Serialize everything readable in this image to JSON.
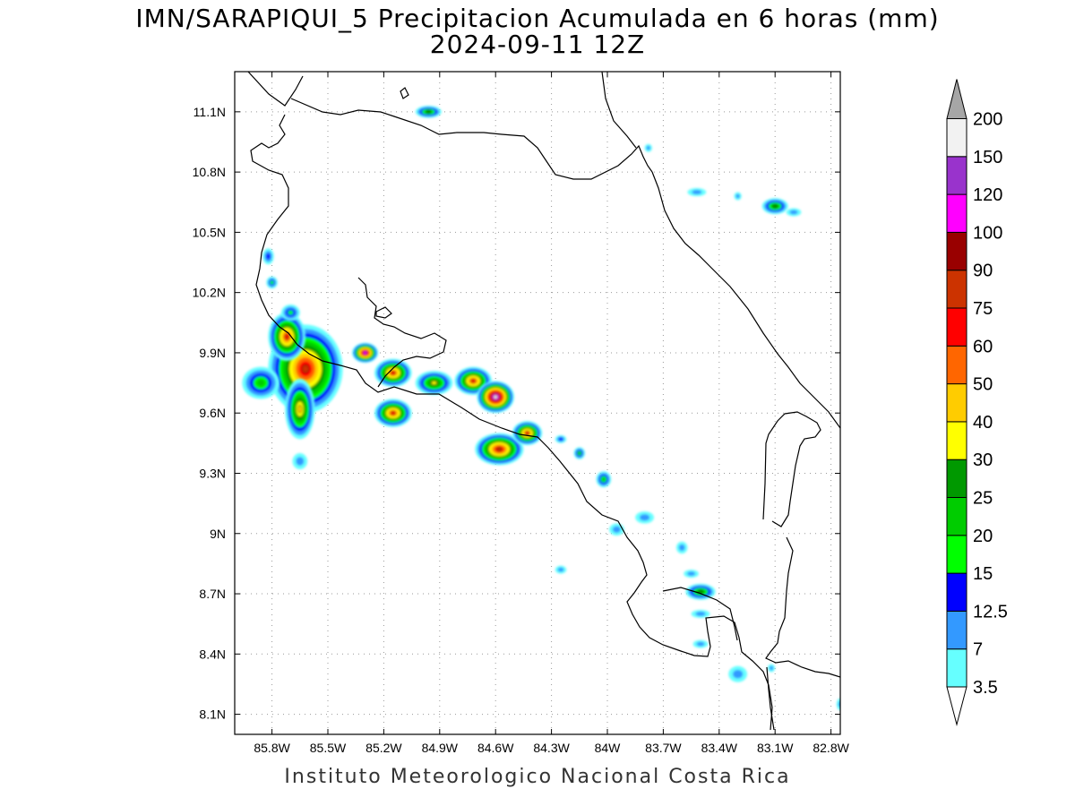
{
  "title": {
    "line1": "IMN/SARAPIQUI_5 Precipitacion Acumulada en 6 horas (mm)",
    "line2": "2024-09-11 12Z"
  },
  "footer": "Instituto Meteorologico Nacional Costa Rica",
  "map": {
    "lon_range": [
      -86.0,
      -82.75
    ],
    "lat_range": [
      8.0,
      11.3
    ],
    "lon_ticks": [
      {
        "value": -85.8,
        "label": "85.8W"
      },
      {
        "value": -85.5,
        "label": "85.5W"
      },
      {
        "value": -85.2,
        "label": "85.2W"
      },
      {
        "value": -84.9,
        "label": "84.9W"
      },
      {
        "value": -84.6,
        "label": "84.6W"
      },
      {
        "value": -84.3,
        "label": "84.3W"
      },
      {
        "value": -84.0,
        "label": "84W"
      },
      {
        "value": -83.7,
        "label": "83.7W"
      },
      {
        "value": -83.4,
        "label": "83.4W"
      },
      {
        "value": -83.1,
        "label": "83.1W"
      },
      {
        "value": -82.8,
        "label": "82.8W"
      }
    ],
    "lat_ticks": [
      {
        "value": 11.1,
        "label": "11.1N"
      },
      {
        "value": 10.8,
        "label": "10.8N"
      },
      {
        "value": 10.5,
        "label": "10.5N"
      },
      {
        "value": 10.2,
        "label": "10.2N"
      },
      {
        "value": 9.9,
        "label": "9.9N"
      },
      {
        "value": 9.6,
        "label": "9.6N"
      },
      {
        "value": 9.3,
        "label": "9.3N"
      },
      {
        "value": 9.0,
        "label": "9N"
      },
      {
        "value": 8.7,
        "label": "8.7N"
      },
      {
        "value": 8.4,
        "label": "8.4N"
      },
      {
        "value": 8.1,
        "label": "8.1N"
      }
    ],
    "grid": "dotted"
  },
  "colorbar": {
    "levels": [
      {
        "label": "3.5",
        "color": "#66ffff"
      },
      {
        "label": "7",
        "color": "#3399ff"
      },
      {
        "label": "12.5",
        "color": "#0000ff"
      },
      {
        "label": "15",
        "color": "#00ff00"
      },
      {
        "label": "20",
        "color": "#00cc00"
      },
      {
        "label": "25",
        "color": "#009900"
      },
      {
        "label": "30",
        "color": "#ffff00"
      },
      {
        "label": "40",
        "color": "#ffcc00"
      },
      {
        "label": "50",
        "color": "#ff6600"
      },
      {
        "label": "60",
        "color": "#ff0000"
      },
      {
        "label": "75",
        "color": "#cc3300"
      },
      {
        "label": "90",
        "color": "#990000"
      },
      {
        "label": "100",
        "color": "#ff00ff"
      },
      {
        "label": "120",
        "color": "#9933cc"
      },
      {
        "label": "150",
        "color": "#f2f2f2"
      },
      {
        "label": "200",
        "color": ""
      }
    ],
    "top_arrow_color": "#a6a6a6",
    "bottom_arrow_color": "#ffffff"
  },
  "rain_cells": [
    {
      "lon": -85.62,
      "lat": 9.82,
      "peak": 75,
      "rlon": 0.2,
      "rlat": 0.22
    },
    {
      "lon": -85.72,
      "lat": 9.98,
      "peak": 60,
      "rlon": 0.1,
      "rlat": 0.12
    },
    {
      "lon": -85.65,
      "lat": 9.62,
      "peak": 40,
      "rlon": 0.08,
      "rlat": 0.15
    },
    {
      "lon": -85.86,
      "lat": 9.75,
      "peak": 20,
      "rlon": 0.1,
      "rlat": 0.08
    },
    {
      "lon": -85.3,
      "lat": 9.9,
      "peak": 100,
      "rlon": 0.07,
      "rlat": 0.05
    },
    {
      "lon": -85.15,
      "lat": 9.8,
      "peak": 60,
      "rlon": 0.1,
      "rlat": 0.07
    },
    {
      "lon": -85.15,
      "lat": 9.6,
      "peak": 60,
      "rlon": 0.1,
      "rlat": 0.07
    },
    {
      "lon": -84.93,
      "lat": 9.75,
      "peak": 30,
      "rlon": 0.1,
      "rlat": 0.06
    },
    {
      "lon": -84.72,
      "lat": 9.76,
      "peak": 60,
      "rlon": 0.1,
      "rlat": 0.07
    },
    {
      "lon": -84.6,
      "lat": 9.68,
      "peak": 150,
      "rlon": 0.1,
      "rlat": 0.08
    },
    {
      "lon": -84.58,
      "lat": 9.42,
      "peak": 75,
      "rlon": 0.13,
      "rlat": 0.08
    },
    {
      "lon": -84.43,
      "lat": 9.5,
      "peak": 60,
      "rlon": 0.08,
      "rlat": 0.06
    },
    {
      "lon": -84.96,
      "lat": 11.1,
      "peak": 25,
      "rlon": 0.07,
      "rlat": 0.03
    },
    {
      "lon": -83.1,
      "lat": 10.63,
      "peak": 25,
      "rlon": 0.07,
      "rlat": 0.04
    },
    {
      "lon": -83.5,
      "lat": 8.71,
      "peak": 25,
      "rlon": 0.08,
      "rlat": 0.04
    },
    {
      "lon": -84.02,
      "lat": 9.27,
      "peak": 20,
      "rlon": 0.04,
      "rlat": 0.04
    },
    {
      "lon": -84.15,
      "lat": 9.4,
      "peak": 20,
      "rlon": 0.03,
      "rlat": 0.03
    },
    {
      "lon": -85.8,
      "lat": 10.25,
      "peak": 15,
      "rlon": 0.03,
      "rlat": 0.03
    },
    {
      "lon": -85.82,
      "lat": 10.38,
      "peak": 12.5,
      "rlon": 0.03,
      "rlat": 0.04
    },
    {
      "lon": -85.7,
      "lat": 10.1,
      "peak": 15,
      "rlon": 0.05,
      "rlat": 0.04
    },
    {
      "lon": -83.8,
      "lat": 9.08,
      "peak": 7,
      "rlon": 0.05,
      "rlat": 0.03
    },
    {
      "lon": -83.95,
      "lat": 9.02,
      "peak": 7,
      "rlon": 0.04,
      "rlat": 0.03
    },
    {
      "lon": -83.6,
      "lat": 8.93,
      "peak": 7,
      "rlon": 0.03,
      "rlat": 0.03
    },
    {
      "lon": -83.55,
      "lat": 8.8,
      "peak": 7,
      "rlon": 0.04,
      "rlat": 0.02
    },
    {
      "lon": -83.5,
      "lat": 8.6,
      "peak": 7,
      "rlon": 0.05,
      "rlat": 0.02
    },
    {
      "lon": -84.25,
      "lat": 8.82,
      "peak": 7,
      "rlon": 0.03,
      "rlat": 0.02
    },
    {
      "lon": -83.3,
      "lat": 10.68,
      "peak": 7,
      "rlon": 0.02,
      "rlat": 0.02
    },
    {
      "lon": -83.52,
      "lat": 10.7,
      "peak": 7,
      "rlon": 0.05,
      "rlat": 0.02
    },
    {
      "lon": -83.0,
      "lat": 10.6,
      "peak": 7,
      "rlon": 0.04,
      "rlat": 0.02
    },
    {
      "lon": -83.78,
      "lat": 10.92,
      "peak": 7,
      "rlon": 0.02,
      "rlat": 0.02
    },
    {
      "lon": -85.65,
      "lat": 9.36,
      "peak": 7,
      "rlon": 0.04,
      "rlat": 0.04
    },
    {
      "lon": -83.3,
      "lat": 8.3,
      "peak": 7,
      "rlon": 0.05,
      "rlat": 0.04
    },
    {
      "lon": -83.5,
      "lat": 8.45,
      "peak": 7,
      "rlon": 0.04,
      "rlat": 0.02
    },
    {
      "lon": -83.12,
      "lat": 8.33,
      "peak": 7,
      "rlon": 0.02,
      "rlat": 0.02
    },
    {
      "lon": -82.75,
      "lat": 8.15,
      "peak": 7,
      "rlon": 0.02,
      "rlat": 0.03
    },
    {
      "lon": -84.25,
      "lat": 9.47,
      "peak": 12.5,
      "rlon": 0.03,
      "rlat": 0.02
    }
  ]
}
